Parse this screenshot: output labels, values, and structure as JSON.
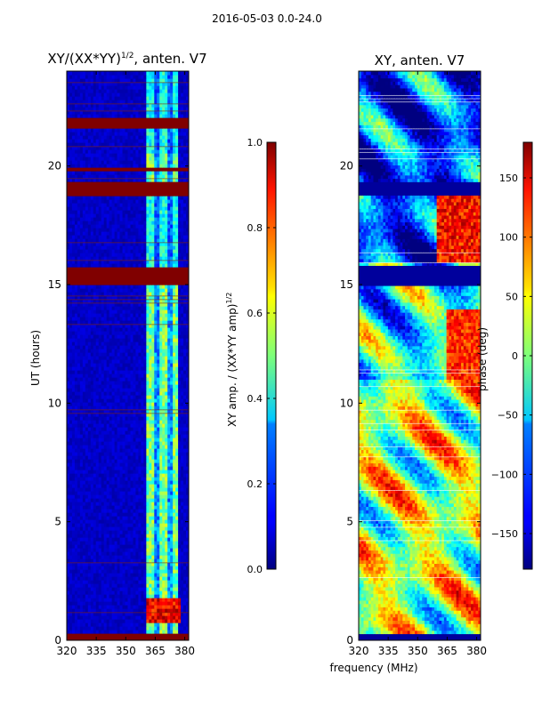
{
  "figure": {
    "suptitle": "2016-05-03 0.0-24.0",
    "xlabel": "frequency (MHz)"
  },
  "chart_data": [
    {
      "type": "heatmap",
      "title_main": "XY/(XX*YY)",
      "title_exp": "1/2",
      "title_suffix": ", anten. V7",
      "ylabel": "UT (hours)",
      "xlim": [
        320,
        382
      ],
      "ylim": [
        0,
        24
      ],
      "xticks": [
        "320",
        "335",
        "350",
        "365",
        "380"
      ],
      "yticks": [
        "0",
        "5",
        "10",
        "15",
        "20"
      ],
      "colorbar": {
        "label_main": "XY amp. / (XX*YY amp)",
        "label_exp": "1/2",
        "vmin": 0.0,
        "vmax": 1.0,
        "ticks": [
          "0.0",
          "0.2",
          "0.4",
          "0.6",
          "0.8",
          "1.0"
        ],
        "tick_values": [
          0,
          0.2,
          0.4,
          0.6,
          0.8,
          1.0
        ]
      },
      "saturated_bands_hours": [
        [
          0,
          0.3
        ],
        [
          15.0,
          15.8
        ],
        [
          18.7,
          19.3
        ],
        [
          19.8,
          20.0
        ],
        [
          21.6,
          22.0
        ]
      ],
      "high_amp_band_mhz": [
        361,
        377
      ],
      "flare_block": {
        "mhz": [
          361,
          378
        ],
        "hours": [
          0.8,
          1.8
        ]
      }
    },
    {
      "type": "heatmap",
      "title": "XY, anten. V7",
      "xlim": [
        320,
        382
      ],
      "ylim": [
        0,
        24
      ],
      "xticks": [
        "320",
        "335",
        "350",
        "365",
        "380"
      ],
      "yticks": [
        "0",
        "5",
        "10",
        "15",
        "20"
      ],
      "colorbar": {
        "label": "phase (deg)",
        "vmin": -180,
        "vmax": 180,
        "ticks": [
          "−150",
          "−100",
          "−50",
          "0",
          "50",
          "100",
          "150"
        ],
        "tick_values": [
          -150,
          -100,
          -50,
          0,
          50,
          100,
          150
        ]
      },
      "flat_bands_hours": [
        [
          0,
          0.3
        ],
        [
          15.0,
          15.8
        ],
        [
          18.8,
          19.3
        ]
      ]
    }
  ]
}
